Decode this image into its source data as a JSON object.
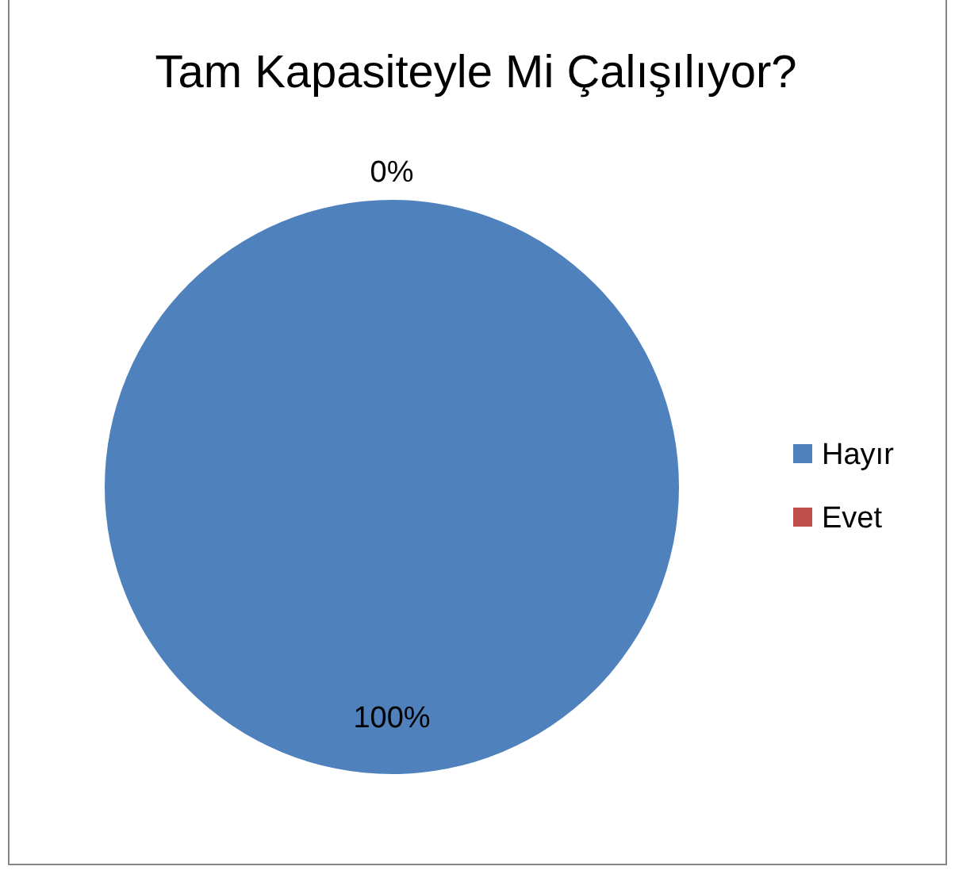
{
  "chart_data": {
    "type": "pie",
    "title": "Tam Kapasiteyle Mi Çalışılıyor?",
    "categories": [
      "Hayır",
      "Evet"
    ],
    "values": [
      100,
      0
    ],
    "colors": [
      "#4f81bd",
      "#c0504d"
    ],
    "value_labels": [
      "100%",
      "0%"
    ],
    "legend": "right"
  }
}
